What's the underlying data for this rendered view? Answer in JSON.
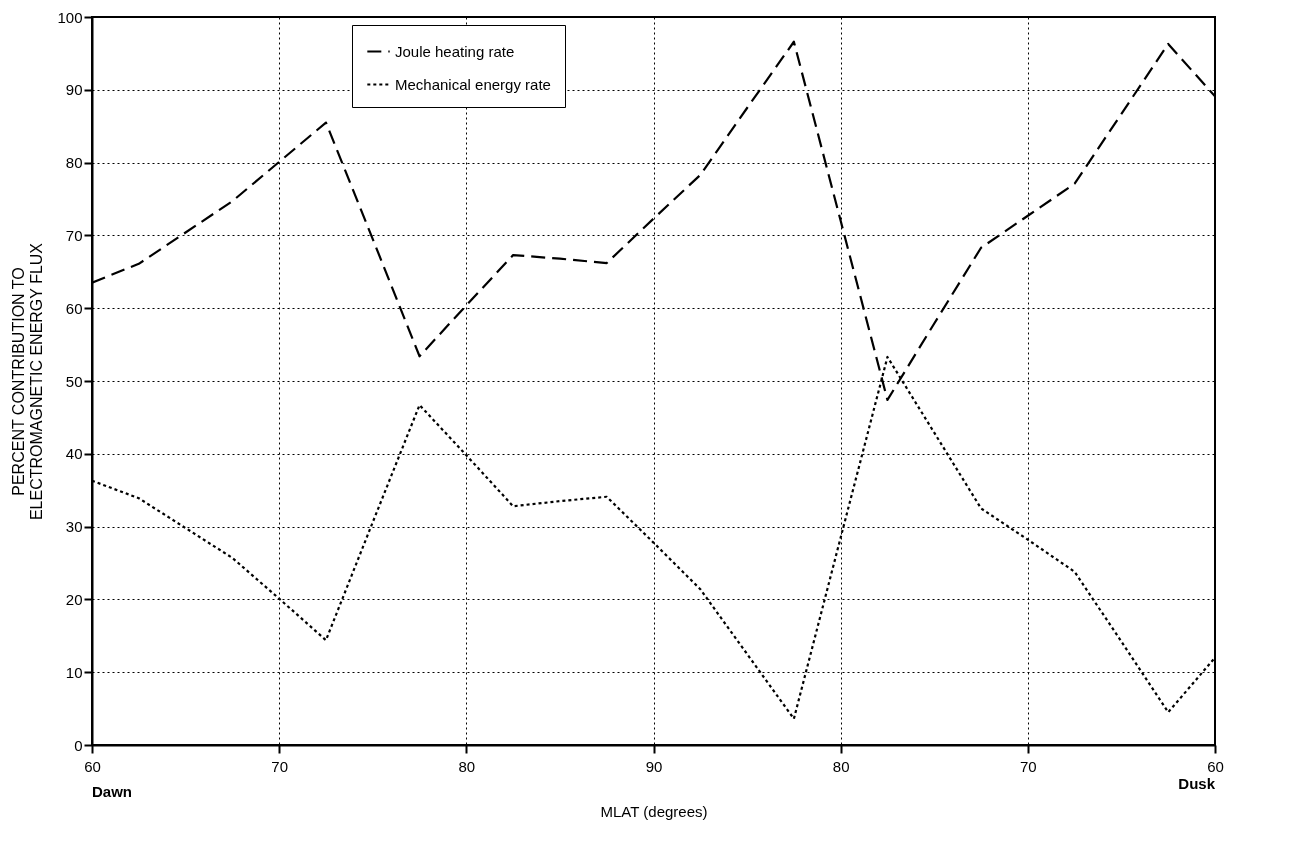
{
  "chart_data": {
    "type": "line",
    "xlabel": "MLAT (degrees)",
    "ylabel": "PERCENT CONTRIBUTION TO\nELECTROMAGNETIC ENERGY FLUX",
    "categories": [
      "60",
      null,
      null,
      null,
      "70",
      null,
      null,
      null,
      "80",
      null,
      null,
      null,
      "90",
      null,
      null,
      null,
      "80",
      null,
      null,
      null,
      "70",
      null,
      null,
      null,
      "60"
    ],
    "series": [
      {
        "name": "Joule heating rate",
        "color": "#000000",
        "line_style": "dashed",
        "values": [
          63.5,
          66.1,
          70.4,
          74.7,
          80.1,
          85.5,
          69.5,
          53.4,
          60.4,
          67.3,
          66.8,
          66.2,
          72.3,
          78.3,
          87.5,
          96.6,
          72.0,
          47.4,
          57.9,
          68.3,
          72.7,
          77.1,
          86.7,
          96.3,
          89.1
        ]
      },
      {
        "name": "Mechanical energy rate",
        "color": "#000000",
        "line_style": "dotted",
        "values": [
          36.3,
          33.9,
          29.8,
          25.7,
          20.1,
          14.4,
          30.6,
          46.7,
          39.8,
          32.8,
          33.5,
          34.1,
          27.8,
          21.4,
          12.5,
          3.6,
          28.5,
          53.3,
          42.9,
          32.5,
          28.2,
          23.8,
          14.2,
          4.5,
          12.0
        ]
      }
    ],
    "ylim": [
      0,
      100
    ],
    "yticks": [
      0,
      10,
      20,
      30,
      40,
      50,
      60,
      70,
      80,
      90,
      100
    ],
    "grid": true,
    "legend": "top",
    "annotations": [
      "Dawn",
      "Dusk"
    ]
  }
}
